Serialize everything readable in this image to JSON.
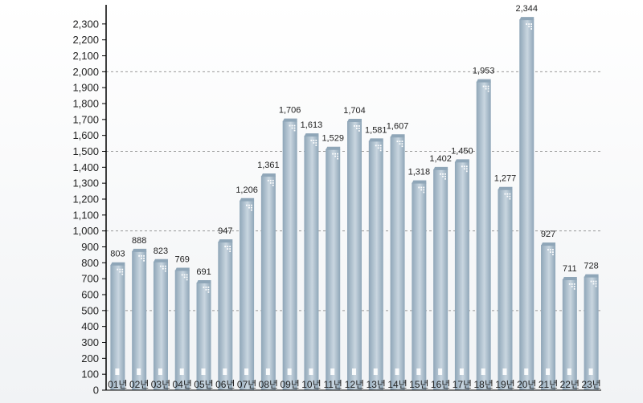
{
  "chart_data": {
    "type": "bar",
    "title": "",
    "xlabel": "",
    "ylabel": "",
    "ylim": [
      0,
      2400
    ],
    "yticks": [
      0,
      100,
      200,
      300,
      400,
      500,
      600,
      700,
      800,
      900,
      1000,
      1100,
      1200,
      1300,
      1400,
      1500,
      1600,
      1700,
      1800,
      1900,
      2000,
      2100,
      2200,
      2300
    ],
    "ytick_labels": [
      "0",
      "100",
      "200",
      "300",
      "400",
      "500",
      "600",
      "700",
      "800",
      "900",
      "1,000",
      "1,100",
      "1,200",
      "1,300",
      "1,400",
      "1,500",
      "1,600",
      "1,700",
      "1,800",
      "1,900",
      "2,000",
      "2,100",
      "2,200",
      "2,300"
    ],
    "dashed_gridlines": [
      500,
      1000,
      1500,
      2000
    ],
    "categories": [
      "01년",
      "02년",
      "03년",
      "04년",
      "05년",
      "06년",
      "07년",
      "08년",
      "09년",
      "10년",
      "11년",
      "12년",
      "13년",
      "14년",
      "15년",
      "16년",
      "17년",
      "18년",
      "19년",
      "20년",
      "21년",
      "22년",
      "23년"
    ],
    "values": [
      803,
      888,
      823,
      769,
      691,
      947,
      1206,
      1361,
      1706,
      1613,
      1529,
      1704,
      1581,
      1607,
      1318,
      1402,
      1450,
      1953,
      1277,
      2344,
      927,
      711,
      728
    ],
    "value_labels": [
      "803",
      "888",
      "823",
      "769",
      "691",
      "947",
      "1,206",
      "1,361",
      "1,706",
      "1,613",
      "1,529",
      "1,704",
      "1,581",
      "1,607",
      "1,318",
      "1,402",
      "1,450",
      "1,953",
      "1,277",
      "2,344",
      "927",
      "711",
      "728"
    ],
    "colors": {
      "bar_light": "#c9d6e0",
      "bar_dark": "#8fa6b8",
      "bar_top": "#d8e2ea",
      "window": "#ffffff",
      "axis": "#000000",
      "grid": "#999999"
    }
  }
}
